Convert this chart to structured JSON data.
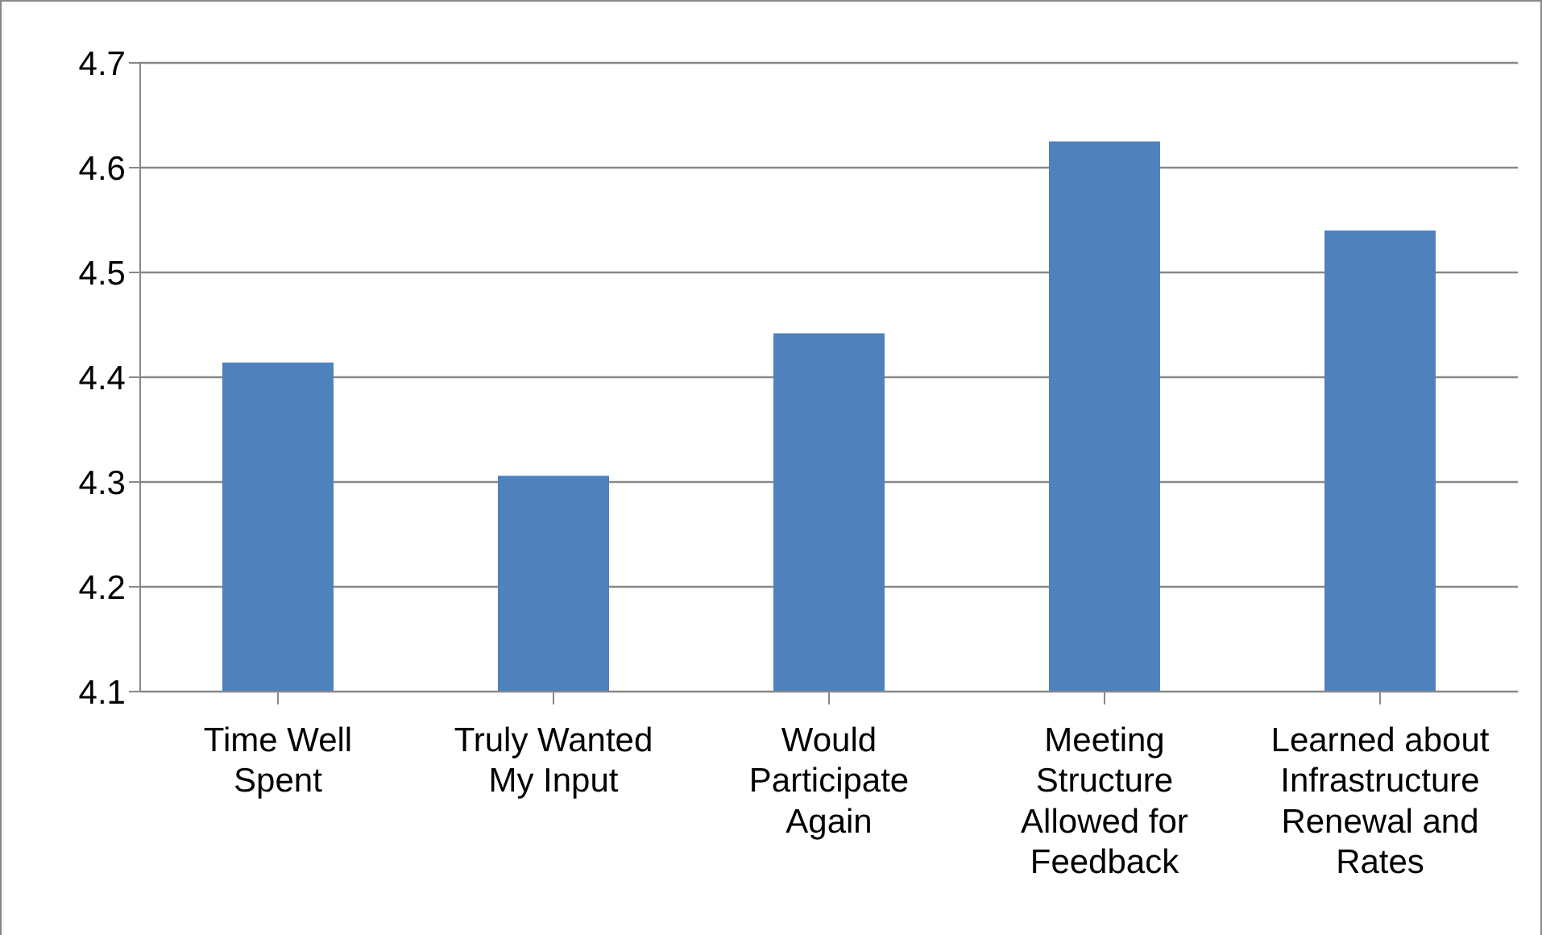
{
  "chart_data": {
    "type": "bar",
    "categories": [
      "Time Well Spent",
      "Truly Wanted My Input",
      "Would Participate Again",
      "Meeting Structure Allowed for Feedback",
      "Learned about Infrastructure Renewal and Rates"
    ],
    "values": [
      4.414,
      4.306,
      4.442,
      4.625,
      4.54
    ],
    "color": "#4f81bd",
    "ylim": [
      4.1,
      4.7
    ],
    "yticks": [
      4.1,
      4.2,
      4.3,
      4.4,
      4.5,
      4.6,
      4.7
    ],
    "grid": "y",
    "legend": false
  }
}
